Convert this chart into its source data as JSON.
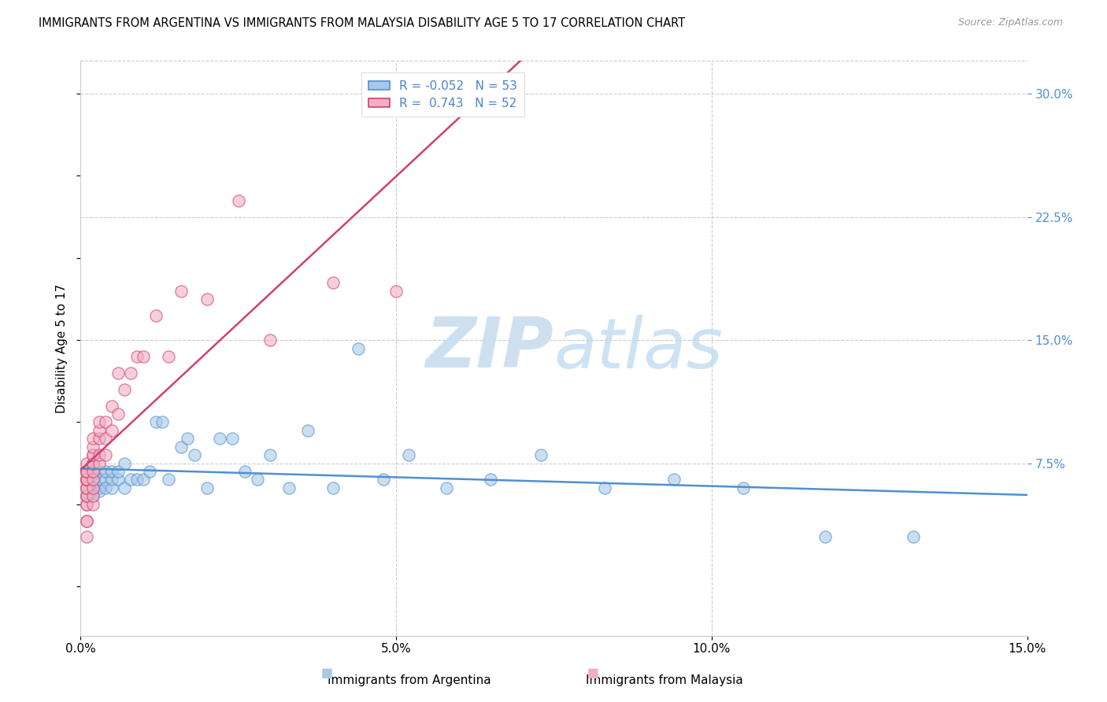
{
  "title": "IMMIGRANTS FROM ARGENTINA VS IMMIGRANTS FROM MALAYSIA DISABILITY AGE 5 TO 17 CORRELATION CHART",
  "source": "Source: ZipAtlas.com",
  "ylabel": "Disability Age 5 to 17",
  "legend_label_argentina": "Immigrants from Argentina",
  "legend_label_malaysia": "Immigrants from Malaysia",
  "r_argentina": -0.052,
  "n_argentina": 53,
  "r_malaysia": 0.743,
  "n_malaysia": 52,
  "xlim": [
    0.0,
    0.15
  ],
  "ylim": [
    -0.03,
    0.32
  ],
  "yticks_right": [
    0.075,
    0.15,
    0.225,
    0.3
  ],
  "color_argentina": "#a8c8e8",
  "color_malaysia": "#f0b0c0",
  "line_color_argentina": "#5090d0",
  "line_color_malaysia": "#d04070",
  "background_color": "#ffffff",
  "watermark_zip": "ZIP",
  "watermark_atlas": "atlas",
  "watermark_color": "#cce0f0",
  "argentina_x": [
    0.001,
    0.001,
    0.001,
    0.001,
    0.002,
    0.002,
    0.002,
    0.002,
    0.002,
    0.003,
    0.003,
    0.003,
    0.003,
    0.004,
    0.004,
    0.004,
    0.005,
    0.005,
    0.005,
    0.006,
    0.006,
    0.007,
    0.007,
    0.008,
    0.009,
    0.01,
    0.011,
    0.012,
    0.013,
    0.014,
    0.016,
    0.017,
    0.018,
    0.02,
    0.022,
    0.024,
    0.026,
    0.028,
    0.03,
    0.033,
    0.036,
    0.04,
    0.044,
    0.048,
    0.052,
    0.058,
    0.065,
    0.073,
    0.083,
    0.094,
    0.105,
    0.118,
    0.132
  ],
  "argentina_y": [
    0.06,
    0.065,
    0.055,
    0.07,
    0.058,
    0.065,
    0.06,
    0.068,
    0.055,
    0.06,
    0.07,
    0.065,
    0.058,
    0.065,
    0.07,
    0.06,
    0.06,
    0.065,
    0.07,
    0.065,
    0.07,
    0.06,
    0.075,
    0.065,
    0.065,
    0.065,
    0.07,
    0.1,
    0.1,
    0.065,
    0.085,
    0.09,
    0.08,
    0.06,
    0.09,
    0.09,
    0.07,
    0.065,
    0.08,
    0.06,
    0.095,
    0.06,
    0.145,
    0.065,
    0.08,
    0.06,
    0.065,
    0.08,
    0.06,
    0.065,
    0.06,
    0.03,
    0.03
  ],
  "malaysia_x": [
    0.001,
    0.001,
    0.001,
    0.001,
    0.001,
    0.001,
    0.001,
    0.001,
    0.001,
    0.001,
    0.001,
    0.001,
    0.001,
    0.001,
    0.001,
    0.001,
    0.001,
    0.002,
    0.002,
    0.002,
    0.002,
    0.002,
    0.002,
    0.002,
    0.002,
    0.002,
    0.002,
    0.002,
    0.003,
    0.003,
    0.003,
    0.003,
    0.003,
    0.004,
    0.004,
    0.004,
    0.005,
    0.005,
    0.006,
    0.006,
    0.007,
    0.008,
    0.009,
    0.01,
    0.012,
    0.014,
    0.016,
    0.02,
    0.025,
    0.03,
    0.04,
    0.05
  ],
  "malaysia_y": [
    0.03,
    0.04,
    0.04,
    0.05,
    0.05,
    0.055,
    0.055,
    0.06,
    0.06,
    0.065,
    0.065,
    0.065,
    0.065,
    0.07,
    0.07,
    0.07,
    0.075,
    0.05,
    0.055,
    0.06,
    0.065,
    0.07,
    0.075,
    0.075,
    0.08,
    0.08,
    0.085,
    0.09,
    0.075,
    0.08,
    0.09,
    0.095,
    0.1,
    0.08,
    0.09,
    0.1,
    0.095,
    0.11,
    0.105,
    0.13,
    0.12,
    0.13,
    0.14,
    0.14,
    0.165,
    0.14,
    0.18,
    0.175,
    0.235,
    0.15,
    0.185,
    0.18
  ]
}
